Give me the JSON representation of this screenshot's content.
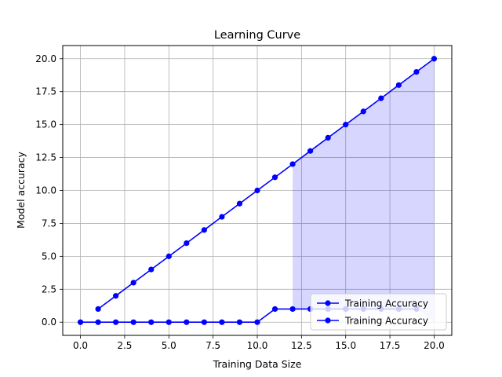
{
  "chart_data": {
    "type": "line",
    "title": "Learning Curve",
    "xlabel": "Training Data Size",
    "ylabel": "Model accuracy",
    "xlim": [
      -1.0,
      21.0
    ],
    "ylim": [
      -1.0,
      21.0
    ],
    "x_ticks": [
      0.0,
      2.5,
      5.0,
      7.5,
      10.0,
      12.5,
      15.0,
      17.5,
      20.0
    ],
    "y_ticks": [
      0.0,
      2.5,
      5.0,
      7.5,
      10.0,
      12.5,
      15.0,
      17.5,
      20.0
    ],
    "x_tick_labels": [
      "0.0",
      "2.5",
      "5.0",
      "7.5",
      "10.0",
      "12.5",
      "15.0",
      "17.5",
      "20.0"
    ],
    "y_tick_labels": [
      "0.0",
      "2.5",
      "5.0",
      "7.5",
      "10.0",
      "12.5",
      "15.0",
      "17.5",
      "20.0"
    ],
    "grid": true,
    "legend_position": "lower-right",
    "line_color": "#0000ff",
    "fill_color": "#0000ff",
    "shaded_region": {
      "x_from": 12,
      "x_to": 20
    },
    "series": [
      {
        "name": "Training Accuracy",
        "x": [
          1,
          2,
          3,
          4,
          5,
          6,
          7,
          8,
          9,
          10,
          11,
          12,
          13,
          14,
          15,
          16,
          17,
          18,
          19,
          20
        ],
        "y": [
          1,
          2,
          3,
          4,
          5,
          6,
          7,
          8,
          9,
          10,
          11,
          12,
          13,
          14,
          15,
          16,
          17,
          18,
          19,
          20
        ]
      },
      {
        "name": "Training Accuracy",
        "x": [
          0,
          1,
          2,
          3,
          4,
          5,
          6,
          7,
          8,
          9,
          10,
          11,
          12,
          13,
          14,
          15,
          16,
          17,
          18,
          19
        ],
        "y": [
          0,
          0,
          0,
          0,
          0,
          0,
          0,
          0,
          0,
          0,
          0,
          1,
          1,
          1,
          1,
          1,
          1,
          1,
          1,
          1
        ]
      }
    ]
  }
}
